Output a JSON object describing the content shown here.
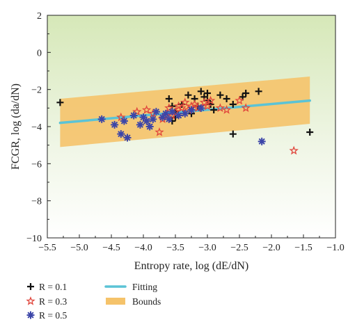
{
  "chart_data": {
    "type": "scatter",
    "xlabel": "Entropy rate, log (dE/dN)",
    "ylabel": "FCGR, log (da/dN)",
    "xlim": [
      -5.5,
      -1.0
    ],
    "ylim": [
      -10,
      2
    ],
    "xticks": [
      "−5.5",
      "−5.0",
      "−4.5",
      "−4.0",
      "−3.5",
      "−3.0",
      "−2.5",
      "−2.0",
      "−1.5",
      "−1.0"
    ],
    "yticks": [
      "2",
      "0",
      "−2",
      "−4",
      "−6",
      "−8",
      "−10"
    ],
    "background": {
      "top_color": "#d6e8b8",
      "bottom_color": "#ffffff"
    },
    "series": [
      {
        "name": "R = 0.1",
        "marker": "plus",
        "color": "#111111",
        "points": [
          [
            -5.3,
            -2.7
          ],
          [
            -3.6,
            -2.5
          ],
          [
            -3.55,
            -2.9
          ],
          [
            -3.5,
            -3.2
          ],
          [
            -3.55,
            -3.7
          ],
          [
            -3.5,
            -3.5
          ],
          [
            -3.4,
            -2.8
          ],
          [
            -3.3,
            -2.3
          ],
          [
            -3.2,
            -2.5
          ],
          [
            -3.15,
            -2.9
          ],
          [
            -3.1,
            -2.1
          ],
          [
            -3.05,
            -2.4
          ],
          [
            -3.0,
            -2.2
          ],
          [
            -2.95,
            -2.8
          ],
          [
            -2.9,
            -3.1
          ],
          [
            -2.8,
            -2.3
          ],
          [
            -2.7,
            -2.5
          ],
          [
            -2.6,
            -2.8
          ],
          [
            -2.45,
            -2.4
          ],
          [
            -2.4,
            -2.2
          ],
          [
            -2.2,
            -2.1
          ],
          [
            -3.25,
            -3.3
          ],
          [
            -3.0,
            -2.6
          ],
          [
            -2.6,
            -4.4
          ],
          [
            -1.4,
            -4.3
          ]
        ]
      },
      {
        "name": "R = 0.3",
        "marker": "star",
        "color": "#e0463c",
        "points": [
          [
            -4.35,
            -3.5
          ],
          [
            -4.1,
            -3.2
          ],
          [
            -3.95,
            -3.1
          ],
          [
            -3.85,
            -3.3
          ],
          [
            -3.75,
            -4.3
          ],
          [
            -3.7,
            -3.6
          ],
          [
            -3.65,
            -3.4
          ],
          [
            -3.6,
            -3.0
          ],
          [
            -3.5,
            -3.2
          ],
          [
            -3.45,
            -2.9
          ],
          [
            -3.4,
            -3.0
          ],
          [
            -3.35,
            -2.7
          ],
          [
            -3.3,
            -3.1
          ],
          [
            -3.25,
            -2.9
          ],
          [
            -3.2,
            -2.8
          ],
          [
            -3.15,
            -3.0
          ],
          [
            -3.05,
            -2.7
          ],
          [
            -2.95,
            -2.6
          ],
          [
            -2.8,
            -3.0
          ],
          [
            -2.7,
            -3.1
          ],
          [
            -2.5,
            -2.6
          ],
          [
            -2.4,
            -3.0
          ],
          [
            -1.65,
            -5.3
          ],
          [
            -3.55,
            -3.4
          ],
          [
            -3.0,
            -2.9
          ]
        ]
      },
      {
        "name": "R = 0.5",
        "marker": "asterisk",
        "color": "#3c46a8",
        "points": [
          [
            -4.65,
            -3.6
          ],
          [
            -4.45,
            -3.9
          ],
          [
            -4.35,
            -4.4
          ],
          [
            -4.3,
            -3.7
          ],
          [
            -4.25,
            -4.6
          ],
          [
            -4.15,
            -3.4
          ],
          [
            -4.05,
            -3.9
          ],
          [
            -4.0,
            -3.5
          ],
          [
            -3.95,
            -3.7
          ],
          [
            -3.9,
            -4.0
          ],
          [
            -3.85,
            -3.6
          ],
          [
            -3.8,
            -3.2
          ],
          [
            -3.7,
            -3.5
          ],
          [
            -3.65,
            -3.3
          ],
          [
            -3.6,
            -3.6
          ],
          [
            -3.55,
            -3.2
          ],
          [
            -3.45,
            -3.4
          ],
          [
            -3.35,
            -3.3
          ],
          [
            -3.25,
            -3.1
          ],
          [
            -3.1,
            -3.0
          ],
          [
            -2.15,
            -4.8
          ]
        ]
      }
    ],
    "fit": {
      "name": "Fitting",
      "color": "#5bc3d6",
      "x": [
        -5.3,
        -1.4
      ],
      "y": [
        -3.8,
        -2.6
      ]
    },
    "bounds": {
      "name": "Bounds",
      "color": "#f5c36a",
      "x": [
        -5.3,
        -1.4
      ],
      "upper": [
        -2.5,
        -1.3
      ],
      "lower": [
        -5.1,
        -3.85
      ]
    },
    "legend": [
      {
        "marker": "plus",
        "color": "#111111",
        "label": "R = 0.1"
      },
      {
        "marker": "star",
        "color": "#e0463c",
        "label": "R = 0.3"
      },
      {
        "marker": "asterisk",
        "color": "#3c46a8",
        "label": "R = 0.5"
      },
      {
        "marker": "line",
        "color": "#5bc3d6",
        "label": "Fitting"
      },
      {
        "marker": "band",
        "color": "#f5c36a",
        "label": "Bounds"
      }
    ]
  }
}
